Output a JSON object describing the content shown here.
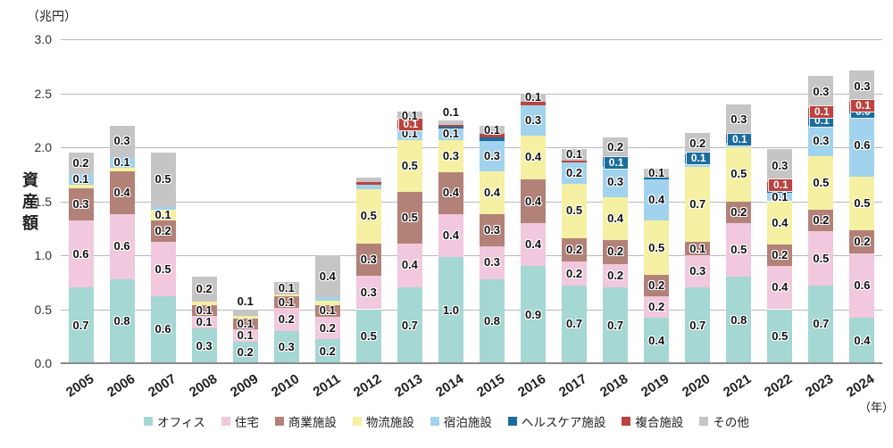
{
  "chart_data": {
    "type": "bar",
    "stacked": true,
    "unit_label": "（兆円）",
    "y_axis_label": "資産額",
    "x_axis_suffix": "（年）",
    "ylim": [
      0,
      3.0
    ],
    "yticks": [
      "0.0",
      "0.5",
      "1.0",
      "1.5",
      "2.0",
      "2.5",
      "3.0"
    ],
    "grid": true,
    "legend_position": "bottom",
    "categories": [
      "オフィス",
      "住宅",
      "商業施設",
      "物流施設",
      "宿泊施設",
      "ヘルスケア施設",
      "複合施設",
      "その他"
    ],
    "colors": [
      "#a5d7d3",
      "#f1c8dd",
      "#b28279",
      "#f5f0a2",
      "#a2d3ee",
      "#1c6d9e",
      "#bb4340",
      "#c5c5c5"
    ],
    "years": [
      "2005",
      "2006",
      "2007",
      "2008",
      "2009",
      "2010",
      "2011",
      "2012",
      "2013",
      "2014",
      "2015",
      "2016",
      "2017",
      "2018",
      "2019",
      "2020",
      "2021",
      "2022",
      "2023",
      "2024"
    ],
    "series": [
      {
        "name": "オフィス",
        "values": [
          0.7,
          0.8,
          0.6,
          0.3,
          0.2,
          0.3,
          0.2,
          0.5,
          0.7,
          1.0,
          0.8,
          0.9,
          0.7,
          0.7,
          0.4,
          0.7,
          0.8,
          0.5,
          0.7,
          0.4
        ]
      },
      {
        "name": "住宅",
        "values": [
          0.6,
          0.6,
          0.5,
          0.1,
          0.1,
          0.2,
          0.2,
          0.3,
          0.4,
          0.4,
          0.3,
          0.4,
          0.2,
          0.2,
          0.2,
          0.3,
          0.5,
          0.4,
          0.5,
          0.6
        ]
      },
      {
        "name": "商業施設",
        "values": [
          0.3,
          0.4,
          0.2,
          0.1,
          0.1,
          0.1,
          0.1,
          0.3,
          0.5,
          0.4,
          0.3,
          0.4,
          0.2,
          0.2,
          0.2,
          0.1,
          0.2,
          0.2,
          0.2,
          0.2
        ]
      },
      {
        "name": "物流施設",
        "values": [
          0.0,
          0.0,
          0.1,
          0.0,
          0.0,
          0.0,
          0.0,
          0.5,
          0.5,
          0.3,
          0.4,
          0.4,
          0.5,
          0.4,
          0.5,
          0.7,
          0.5,
          0.4,
          0.5,
          0.5
        ]
      },
      {
        "name": "宿泊施設",
        "values": [
          0.1,
          0.1,
          0.0,
          0.0,
          0.0,
          0.0,
          0.0,
          0.0,
          0.1,
          0.1,
          0.3,
          0.3,
          0.2,
          0.3,
          0.4,
          0.0,
          0.0,
          0.1,
          0.3,
          0.6
        ]
      },
      {
        "name": "ヘルスケア施設",
        "values": [
          0.0,
          0.0,
          0.0,
          0.0,
          0.0,
          0.0,
          0.0,
          0.0,
          0.0,
          0.0,
          0.0,
          0.0,
          0.0,
          0.1,
          0.0,
          0.1,
          0.1,
          0.0,
          0.1,
          0.0
        ]
      },
      {
        "name": "複合施設",
        "values": [
          0.0,
          0.0,
          0.0,
          0.0,
          0.0,
          0.0,
          0.0,
          0.0,
          0.1,
          0.0,
          0.0,
          0.0,
          0.0,
          0.0,
          0.0,
          0.0,
          0.0,
          0.1,
          0.1,
          0.1
        ]
      },
      {
        "name": "その他",
        "values": [
          0.2,
          0.3,
          0.5,
          0.2,
          0.1,
          0.1,
          0.4,
          0.0,
          0.1,
          0.1,
          0.1,
          0.1,
          0.1,
          0.2,
          0.1,
          0.2,
          0.3,
          0.3,
          0.3,
          0.3
        ]
      }
    ],
    "bars": [
      {
        "year": "2005",
        "stack": [
          {
            "ci": 0,
            "h": 0.7,
            "label": "0.7"
          },
          {
            "ci": 1,
            "h": 0.62,
            "label": "0.6"
          },
          {
            "ci": 2,
            "h": 0.3,
            "label": "0.3"
          },
          {
            "ci": 3,
            "h": 0.03
          },
          {
            "ci": 4,
            "h": 0.1,
            "label": "0.1"
          },
          {
            "ci": 7,
            "h": 0.2,
            "label": "0.2"
          }
        ]
      },
      {
        "year": "2006",
        "stack": [
          {
            "ci": 0,
            "h": 0.78,
            "label": "0.8"
          },
          {
            "ci": 1,
            "h": 0.6,
            "label": "0.6"
          },
          {
            "ci": 2,
            "h": 0.4,
            "label": "0.4"
          },
          {
            "ci": 3,
            "h": 0.03
          },
          {
            "ci": 4,
            "h": 0.1,
            "label": "0.1"
          },
          {
            "ci": 7,
            "h": 0.29,
            "label": "0.3"
          }
        ]
      },
      {
        "year": "2007",
        "stack": [
          {
            "ci": 0,
            "h": 0.62,
            "label": "0.6"
          },
          {
            "ci": 1,
            "h": 0.5,
            "label": "0.5"
          },
          {
            "ci": 2,
            "h": 0.2,
            "label": "0.2"
          },
          {
            "ci": 3,
            "h": 0.1,
            "label": "0.1"
          },
          {
            "ci": 4,
            "h": 0.03
          },
          {
            "ci": 7,
            "h": 0.5,
            "label": "0.5"
          }
        ]
      },
      {
        "year": "2008",
        "stack": [
          {
            "ci": 0,
            "h": 0.32,
            "label": "0.3"
          },
          {
            "ci": 1,
            "h": 0.12,
            "label": "0.1"
          },
          {
            "ci": 2,
            "h": 0.1,
            "label": "0.1"
          },
          {
            "ci": 3,
            "h": 0.03
          },
          {
            "ci": 7,
            "h": 0.23,
            "label": "0.2"
          }
        ]
      },
      {
        "year": "2009",
        "stack": [
          {
            "ci": 0,
            "h": 0.2,
            "label": "0.2"
          },
          {
            "ci": 1,
            "h": 0.11,
            "label": "0.1"
          },
          {
            "ci": 2,
            "h": 0.1,
            "label": "0.1"
          },
          {
            "ci": 3,
            "h": 0.03
          },
          {
            "ci": 7,
            "h": 0.06,
            "label": "0.1",
            "above": true
          }
        ]
      },
      {
        "year": "2010",
        "stack": [
          {
            "ci": 0,
            "h": 0.3,
            "label": "0.3"
          },
          {
            "ci": 1,
            "h": 0.21,
            "label": "0.2"
          },
          {
            "ci": 2,
            "h": 0.11,
            "label": "0.1"
          },
          {
            "ci": 3,
            "h": 0.02
          },
          {
            "ci": 7,
            "h": 0.11,
            "label": "0.1"
          }
        ]
      },
      {
        "year": "2011",
        "stack": [
          {
            "ci": 0,
            "h": 0.22,
            "label": "0.2"
          },
          {
            "ci": 1,
            "h": 0.21,
            "label": "0.2"
          },
          {
            "ci": 2,
            "h": 0.11,
            "label": "0.1"
          },
          {
            "ci": 3,
            "h": 0.04
          },
          {
            "ci": 4,
            "h": 0.03
          },
          {
            "ci": 7,
            "h": 0.39,
            "label": "0.4"
          }
        ]
      },
      {
        "year": "2012",
        "stack": [
          {
            "ci": 0,
            "h": 0.5,
            "label": "0.5"
          },
          {
            "ci": 1,
            "h": 0.31,
            "label": "0.3"
          },
          {
            "ci": 2,
            "h": 0.3,
            "label": "0.3"
          },
          {
            "ci": 3,
            "h": 0.5,
            "label": "0.5"
          },
          {
            "ci": 4,
            "h": 0.04
          },
          {
            "ci": 6,
            "h": 0.03
          },
          {
            "ci": 7,
            "h": 0.04
          }
        ]
      },
      {
        "year": "2013",
        "stack": [
          {
            "ci": 0,
            "h": 0.7,
            "label": "0.7"
          },
          {
            "ci": 1,
            "h": 0.41,
            "label": "0.4"
          },
          {
            "ci": 2,
            "h": 0.48,
            "label": "0.5"
          },
          {
            "ci": 3,
            "h": 0.48,
            "label": "0.5"
          },
          {
            "ci": 4,
            "h": 0.1,
            "label": "0.1"
          },
          {
            "ci": 6,
            "h": 0.08,
            "label": "0.1"
          },
          {
            "ci": 7,
            "h": 0.08,
            "label": "0.1"
          }
        ]
      },
      {
        "year": "2014",
        "stack": [
          {
            "ci": 0,
            "h": 0.98,
            "label": "1.0"
          },
          {
            "ci": 1,
            "h": 0.4,
            "label": "0.4"
          },
          {
            "ci": 2,
            "h": 0.39,
            "label": "0.4"
          },
          {
            "ci": 3,
            "h": 0.3,
            "label": "0.3"
          },
          {
            "ci": 4,
            "h": 0.1,
            "label": "0.1"
          },
          {
            "ci": 5,
            "h": 0.02
          },
          {
            "ci": 6,
            "h": 0.02
          },
          {
            "ci": 7,
            "h": 0.04,
            "label": "0.1",
            "above": true
          }
        ]
      },
      {
        "year": "2015",
        "stack": [
          {
            "ci": 0,
            "h": 0.78,
            "label": "0.8"
          },
          {
            "ci": 1,
            "h": 0.3,
            "label": "0.3"
          },
          {
            "ci": 2,
            "h": 0.3,
            "label": "0.3"
          },
          {
            "ci": 3,
            "h": 0.4,
            "label": "0.4"
          },
          {
            "ci": 4,
            "h": 0.28,
            "label": "0.3"
          },
          {
            "ci": 5,
            "h": 0.03
          },
          {
            "ci": 6,
            "h": 0.03
          },
          {
            "ci": 7,
            "h": 0.08,
            "label": "0.1"
          }
        ]
      },
      {
        "year": "2016",
        "stack": [
          {
            "ci": 0,
            "h": 0.9,
            "label": "0.9"
          },
          {
            "ci": 1,
            "h": 0.4,
            "label": "0.4"
          },
          {
            "ci": 2,
            "h": 0.4,
            "label": "0.4"
          },
          {
            "ci": 3,
            "h": 0.41,
            "label": "0.4"
          },
          {
            "ci": 4,
            "h": 0.28,
            "label": "0.3"
          },
          {
            "ci": 6,
            "h": 0.03
          },
          {
            "ci": 7,
            "h": 0.08,
            "label": "0.1"
          }
        ]
      },
      {
        "year": "2017",
        "stack": [
          {
            "ci": 0,
            "h": 0.72,
            "label": "0.7"
          },
          {
            "ci": 1,
            "h": 0.22,
            "label": "0.2"
          },
          {
            "ci": 2,
            "h": 0.22,
            "label": "0.2"
          },
          {
            "ci": 3,
            "h": 0.5,
            "label": "0.5"
          },
          {
            "ci": 4,
            "h": 0.2,
            "label": "0.2"
          },
          {
            "ci": 6,
            "h": 0.02
          },
          {
            "ci": 7,
            "h": 0.1,
            "label": "0.1"
          }
        ]
      },
      {
        "year": "2018",
        "stack": [
          {
            "ci": 0,
            "h": 0.7,
            "label": "0.7"
          },
          {
            "ci": 1,
            "h": 0.22,
            "label": "0.2"
          },
          {
            "ci": 2,
            "h": 0.22,
            "label": "0.2"
          },
          {
            "ci": 3,
            "h": 0.4,
            "label": "0.4"
          },
          {
            "ci": 4,
            "h": 0.28,
            "label": "0.3"
          },
          {
            "ci": 5,
            "h": 0.07,
            "label": "0.1"
          },
          {
            "ci": 6,
            "h": 0.02
          },
          {
            "ci": 7,
            "h": 0.18,
            "label": "0.2"
          }
        ]
      },
      {
        "year": "2019",
        "stack": [
          {
            "ci": 0,
            "h": 0.42,
            "label": "0.4"
          },
          {
            "ci": 1,
            "h": 0.2,
            "label": "0.2"
          },
          {
            "ci": 2,
            "h": 0.2,
            "label": "0.2"
          },
          {
            "ci": 3,
            "h": 0.5,
            "label": "0.5"
          },
          {
            "ci": 4,
            "h": 0.38,
            "label": "0.4"
          },
          {
            "ci": 5,
            "h": 0.02
          },
          {
            "ci": 7,
            "h": 0.08,
            "label": "0.1"
          }
        ]
      },
      {
        "year": "2020",
        "stack": [
          {
            "ci": 0,
            "h": 0.7,
            "label": "0.7"
          },
          {
            "ci": 1,
            "h": 0.3,
            "label": "0.3"
          },
          {
            "ci": 2,
            "h": 0.12,
            "label": "0.1"
          },
          {
            "ci": 3,
            "h": 0.7,
            "label": "0.7"
          },
          {
            "ci": 4,
            "h": 0.03
          },
          {
            "ci": 5,
            "h": 0.08,
            "label": "0.1"
          },
          {
            "ci": 7,
            "h": 0.2,
            "label": "0.2"
          }
        ]
      },
      {
        "year": "2021",
        "stack": [
          {
            "ci": 0,
            "h": 0.8,
            "label": "0.8"
          },
          {
            "ci": 1,
            "h": 0.5,
            "label": "0.5"
          },
          {
            "ci": 2,
            "h": 0.2,
            "label": "0.2"
          },
          {
            "ci": 3,
            "h": 0.5,
            "label": "0.5"
          },
          {
            "ci": 4,
            "h": 0.04
          },
          {
            "ci": 5,
            "h": 0.05,
            "label": "0.1"
          },
          {
            "ci": 6,
            "h": 0.03
          },
          {
            "ci": 7,
            "h": 0.28,
            "label": "0.3"
          }
        ]
      },
      {
        "year": "2022",
        "stack": [
          {
            "ci": 0,
            "h": 0.5,
            "label": "0.5"
          },
          {
            "ci": 1,
            "h": 0.4,
            "label": "0.4"
          },
          {
            "ci": 2,
            "h": 0.2,
            "label": "0.2"
          },
          {
            "ci": 3,
            "h": 0.4,
            "label": "0.4"
          },
          {
            "ci": 4,
            "h": 0.08,
            "label": "0.1"
          },
          {
            "ci": 5,
            "h": 0.03
          },
          {
            "ci": 6,
            "h": 0.07,
            "label": "0.1"
          },
          {
            "ci": 7,
            "h": 0.3,
            "label": "0.3"
          }
        ]
      },
      {
        "year": "2023",
        "stack": [
          {
            "ci": 0,
            "h": 0.72,
            "label": "0.7"
          },
          {
            "ci": 1,
            "h": 0.5,
            "label": "0.5"
          },
          {
            "ci": 2,
            "h": 0.2,
            "label": "0.2"
          },
          {
            "ci": 3,
            "h": 0.5,
            "label": "0.5"
          },
          {
            "ci": 4,
            "h": 0.28,
            "label": "0.3"
          },
          {
            "ci": 5,
            "h": 0.08,
            "label": "0.1"
          },
          {
            "ci": 6,
            "h": 0.08,
            "label": "0.1"
          },
          {
            "ci": 7,
            "h": 0.3,
            "label": "0.3"
          }
        ]
      },
      {
        "year": "2024",
        "stack": [
          {
            "ci": 0,
            "h": 0.42,
            "label": "0.4"
          },
          {
            "ci": 1,
            "h": 0.6,
            "label": "0.6"
          },
          {
            "ci": 2,
            "h": 0.21,
            "label": "0.2"
          },
          {
            "ci": 3,
            "h": 0.5,
            "label": "0.5"
          },
          {
            "ci": 4,
            "h": 0.58,
            "label": "0.6"
          },
          {
            "ci": 5,
            "h": 0.03,
            "label": "0.0"
          },
          {
            "ci": 6,
            "h": 0.08,
            "label": "0.1"
          },
          {
            "ci": 7,
            "h": 0.29,
            "label": "0.3"
          }
        ]
      }
    ]
  }
}
